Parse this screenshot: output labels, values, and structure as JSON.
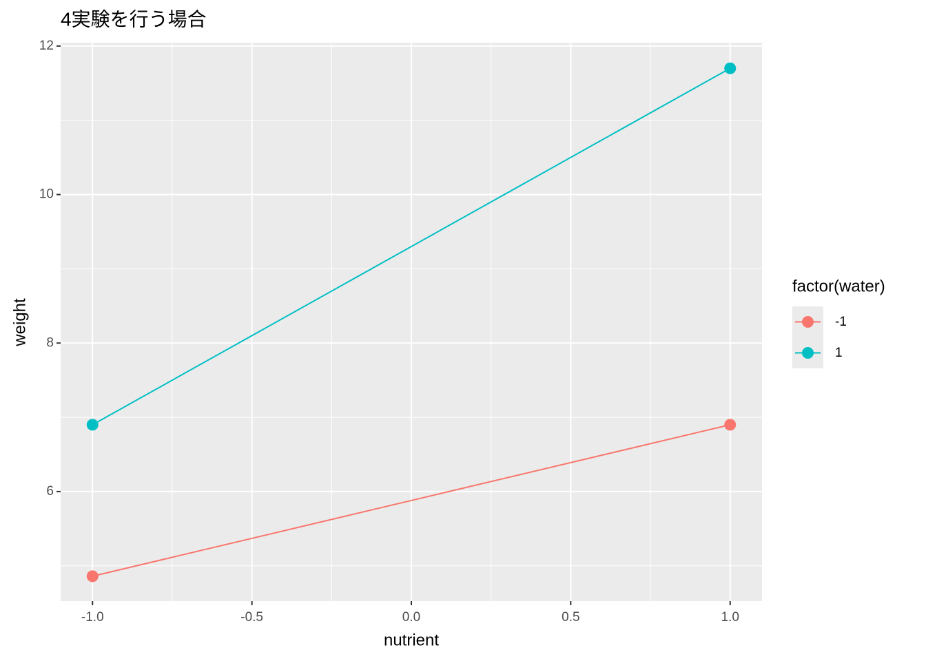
{
  "chart_data": {
    "type": "line",
    "title": "4実験を行う場合",
    "x_label": "nutrient",
    "y_label": "weight",
    "x": [
      -1,
      1
    ],
    "series": [
      {
        "name": "-1",
        "color": "#F8766D",
        "values": [
          4.86,
          6.9
        ]
      },
      {
        "name": "1",
        "color": "#00BFC4",
        "values": [
          6.9,
          11.7
        ]
      }
    ],
    "legend_title": "factor(water)",
    "legend_position": "right",
    "xlim": [
      -1.1,
      1.1
    ],
    "xticks": [
      {
        "value": -1,
        "label": "-1.0"
      },
      {
        "value": -0.5,
        "label": "-0.5"
      },
      {
        "value": 0,
        "label": "0.0"
      },
      {
        "value": 0.5,
        "label": "0.5"
      },
      {
        "value": 1,
        "label": "1.0"
      }
    ],
    "ylim": [
      4.525,
      12.045
    ],
    "yticks": [
      6,
      8,
      10,
      12
    ],
    "grid": true
  }
}
